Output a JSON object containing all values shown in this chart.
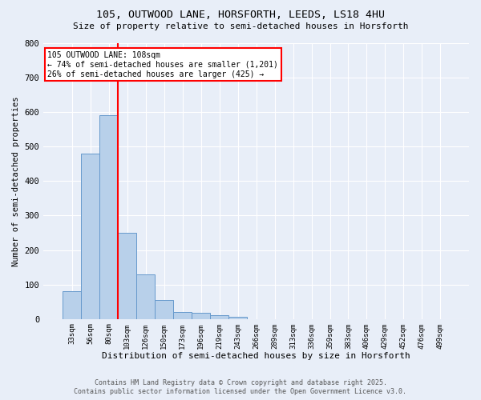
{
  "title_line1": "105, OUTWOOD LANE, HORSFORTH, LEEDS, LS18 4HU",
  "title_line2": "Size of property relative to semi-detached houses in Horsforth",
  "xlabel": "Distribution of semi-detached houses by size in Horsforth",
  "ylabel": "Number of semi-detached properties",
  "categories": [
    "33sqm",
    "56sqm",
    "80sqm",
    "103sqm",
    "126sqm",
    "150sqm",
    "173sqm",
    "196sqm",
    "219sqm",
    "243sqm",
    "266sqm",
    "289sqm",
    "313sqm",
    "336sqm",
    "359sqm",
    "383sqm",
    "406sqm",
    "429sqm",
    "452sqm",
    "476sqm",
    "499sqm"
  ],
  "values": [
    80,
    480,
    590,
    250,
    130,
    55,
    20,
    18,
    12,
    6,
    0,
    0,
    0,
    0,
    0,
    0,
    0,
    0,
    0,
    0,
    0
  ],
  "bar_color": "#b8d0ea",
  "bar_edge_color": "#6699cc",
  "vline_color": "red",
  "vline_x_index": 2.5,
  "annotation_title": "105 OUTWOOD LANE: 108sqm",
  "annotation_line1": "← 74% of semi-detached houses are smaller (1,201)",
  "annotation_line2": "26% of semi-detached houses are larger (425) →",
  "annotation_box_color": "white",
  "annotation_box_edge_color": "red",
  "ylim": [
    0,
    800
  ],
  "yticks": [
    0,
    100,
    200,
    300,
    400,
    500,
    600,
    700,
    800
  ],
  "bg_color": "#e8eef8",
  "grid_color": "white",
  "footer_line1": "Contains HM Land Registry data © Crown copyright and database right 2025.",
  "footer_line2": "Contains public sector information licensed under the Open Government Licence v3.0."
}
